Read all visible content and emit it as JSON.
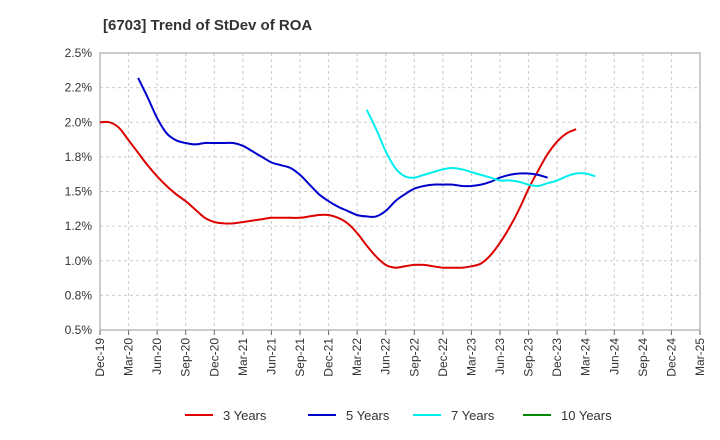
{
  "chart_data": {
    "type": "line",
    "title": "[6703]  Trend of StDev of ROA",
    "xlabel": "",
    "ylabel": "",
    "x_ticks": [
      "Dec-19",
      "Mar-20",
      "Jun-20",
      "Sep-20",
      "Dec-20",
      "Mar-21",
      "Jun-21",
      "Sep-21",
      "Dec-21",
      "Mar-22",
      "Jun-22",
      "Sep-22",
      "Dec-22",
      "Mar-23",
      "Jun-23",
      "Sep-23",
      "Dec-23",
      "Mar-24",
      "Jun-24",
      "Sep-24",
      "Dec-24",
      "Mar-25"
    ],
    "y_ticks": [
      "0.5%",
      "0.8%",
      "1.0%",
      "1.2%",
      "1.5%",
      "1.8%",
      "2.0%",
      "2.2%",
      "2.5%"
    ],
    "ylim": [
      0.5,
      2.5
    ],
    "grid": true,
    "legend_position": "bottom",
    "series": [
      {
        "name": "3 Years",
        "color": "#dd0000",
        "start_index": 0,
        "values": [
          2.0,
          2.0,
          1.96,
          1.87,
          1.78,
          1.69,
          1.61,
          1.54,
          1.48,
          1.43,
          1.37,
          1.31,
          1.28,
          1.27,
          1.27,
          1.28,
          1.29,
          1.3,
          1.31,
          1.31,
          1.31,
          1.31,
          1.32,
          1.33,
          1.33,
          1.31,
          1.27,
          1.2,
          1.11,
          1.03,
          0.97,
          0.95,
          0.96,
          0.97,
          0.97,
          0.96,
          0.95,
          0.95,
          0.95,
          0.96,
          0.98,
          1.04,
          1.13,
          1.24,
          1.37,
          1.52,
          1.65,
          1.77,
          1.86,
          1.92,
          1.95
        ]
      },
      {
        "name": "5 Years",
        "color": "#0000cc",
        "start_index": 4,
        "values": [
          2.32,
          2.18,
          2.03,
          1.92,
          1.87,
          1.85,
          1.84,
          1.85,
          1.85,
          1.85,
          1.85,
          1.83,
          1.79,
          1.75,
          1.71,
          1.69,
          1.67,
          1.62,
          1.55,
          1.48,
          1.43,
          1.39,
          1.36,
          1.33,
          1.32,
          1.32,
          1.36,
          1.43,
          1.48,
          1.52,
          1.54,
          1.55,
          1.55,
          1.55,
          1.54,
          1.54,
          1.55,
          1.57,
          1.6,
          1.62,
          1.63,
          1.63,
          1.62,
          1.6
        ]
      },
      {
        "name": "7 Years",
        "color": "#00eeee",
        "start_index": 28,
        "values": [
          2.09,
          1.95,
          1.79,
          1.67,
          1.61,
          1.6,
          1.62,
          1.64,
          1.66,
          1.67,
          1.66,
          1.64,
          1.62,
          1.6,
          1.58,
          1.58,
          1.57,
          1.55,
          1.54,
          1.56,
          1.58,
          1.61,
          1.63,
          1.63,
          1.61
        ]
      },
      {
        "name": "10 Years",
        "color": "#008800",
        "start_index": 0,
        "values": []
      }
    ]
  }
}
